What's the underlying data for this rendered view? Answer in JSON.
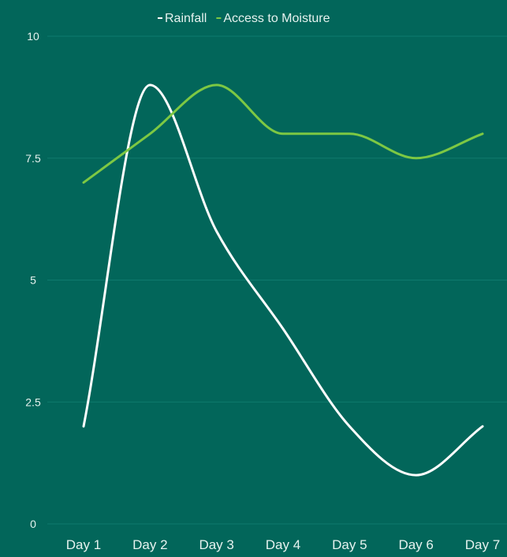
{
  "colors": {
    "background": "#02665a",
    "text": "#e6f2ef",
    "gridline": "#0f7a6d"
  },
  "chart_data": {
    "type": "line",
    "title": "",
    "xlabel": "",
    "ylabel": "",
    "categories": [
      "Day 1",
      "Day 2",
      "Day 3",
      "Day 4",
      "Day 5",
      "Day 6",
      "Day 7"
    ],
    "ylim": [
      0,
      10
    ],
    "yticks": [
      0,
      2.5,
      5,
      7.5,
      10
    ],
    "ytick_labels": [
      "0",
      "2.5",
      "5",
      "7.5",
      "10"
    ],
    "grid": true,
    "legend_position": "top-center",
    "smooth": true,
    "series": [
      {
        "name": "Rainfall",
        "color": "#ffffff",
        "values": [
          2,
          9,
          6,
          4,
          2,
          1,
          2
        ]
      },
      {
        "name": "Access to Moisture",
        "color": "#7dc843",
        "values": [
          7,
          8,
          9,
          8,
          8,
          7.5,
          8
        ]
      }
    ]
  }
}
